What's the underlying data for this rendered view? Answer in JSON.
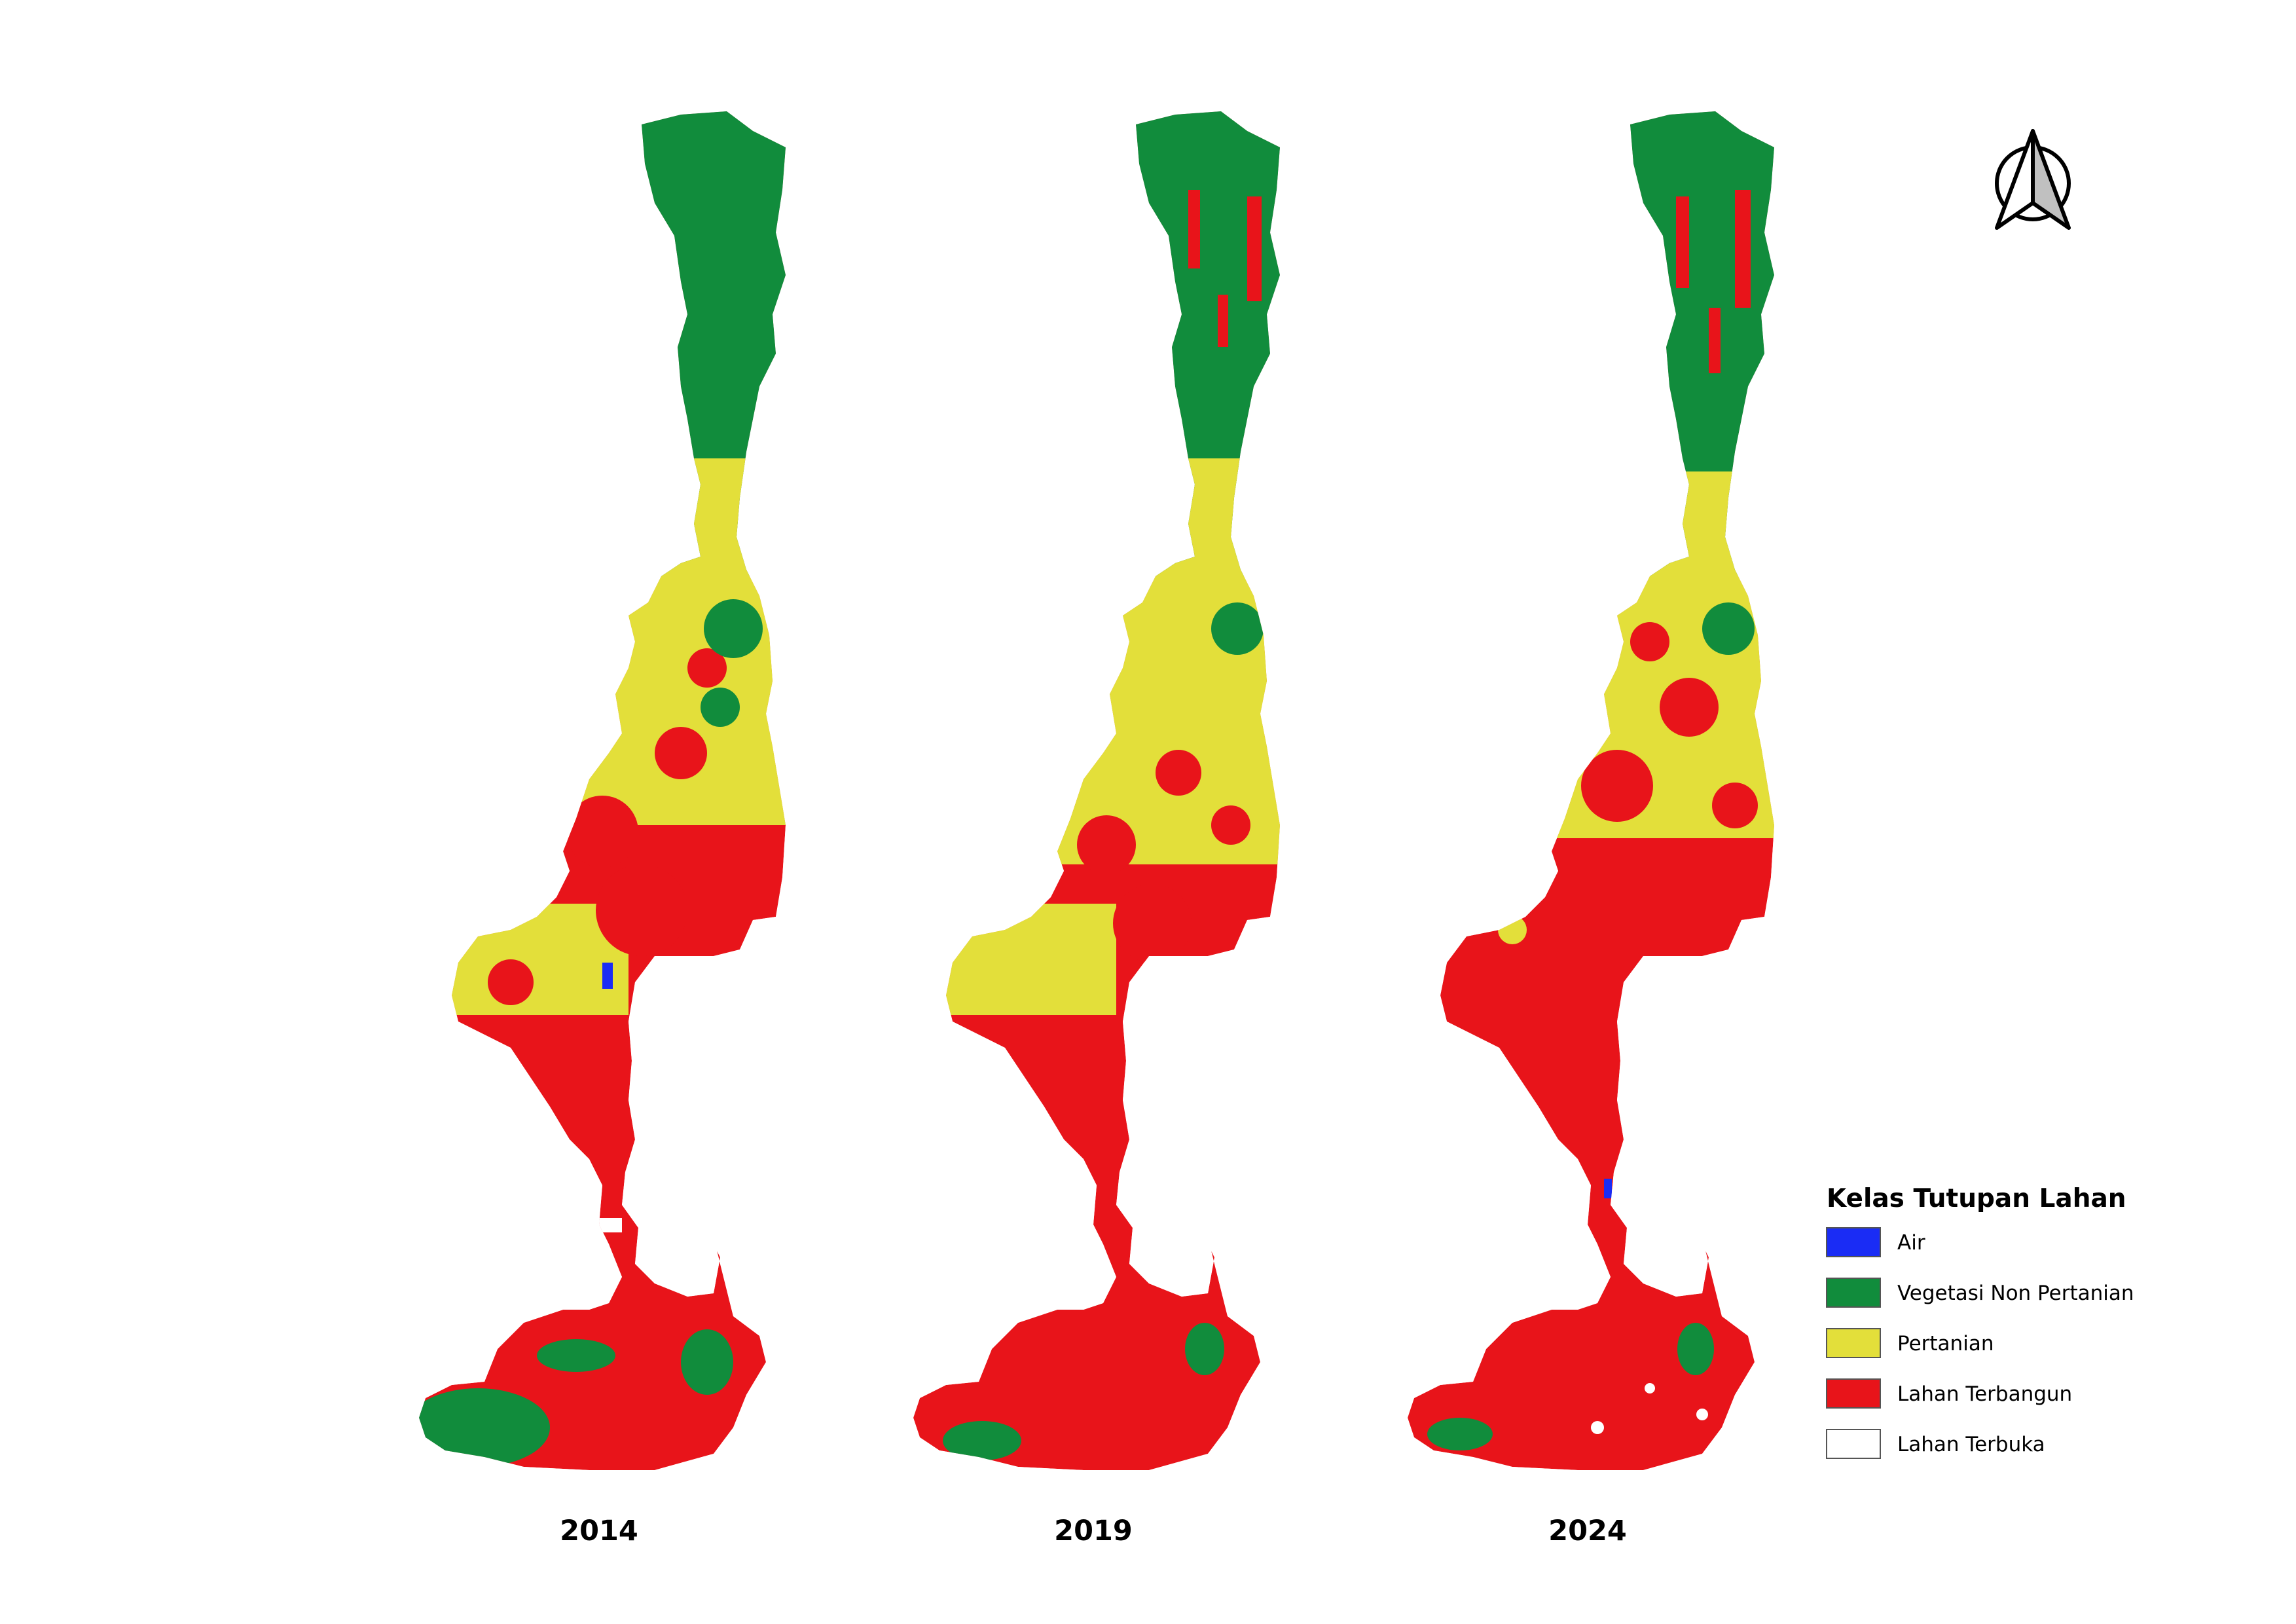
{
  "colors": {
    "air": "#1a2cf5",
    "vegetasi_non_pertanian": "#118c3c",
    "pertanian": "#e3df3a",
    "lahan_terbangun": "#e8141a",
    "lahan_terbuka": "#ffffff",
    "outline": "#000000"
  },
  "maps": [
    {
      "year": "2014",
      "dominant_class": "mixed"
    },
    {
      "year": "2019",
      "dominant_class": "pertanian"
    },
    {
      "year": "2024",
      "dominant_class": "lahan_terbangun"
    }
  ],
  "north_arrow": {
    "icon": "north-arrow-icon"
  },
  "legend": {
    "title": "Kelas Tutupan Lahan",
    "items": [
      {
        "label": "Air",
        "color": "#1a2cf5"
      },
      {
        "label": "Vegetasi Non Pertanian",
        "color": "#118c3c"
      },
      {
        "label": "Pertanian",
        "color": "#e3df3a"
      },
      {
        "label": "Lahan Terbangun",
        "color": "#e8141a"
      },
      {
        "label": "Lahan Terbuka",
        "color": "#ffffff"
      }
    ]
  }
}
